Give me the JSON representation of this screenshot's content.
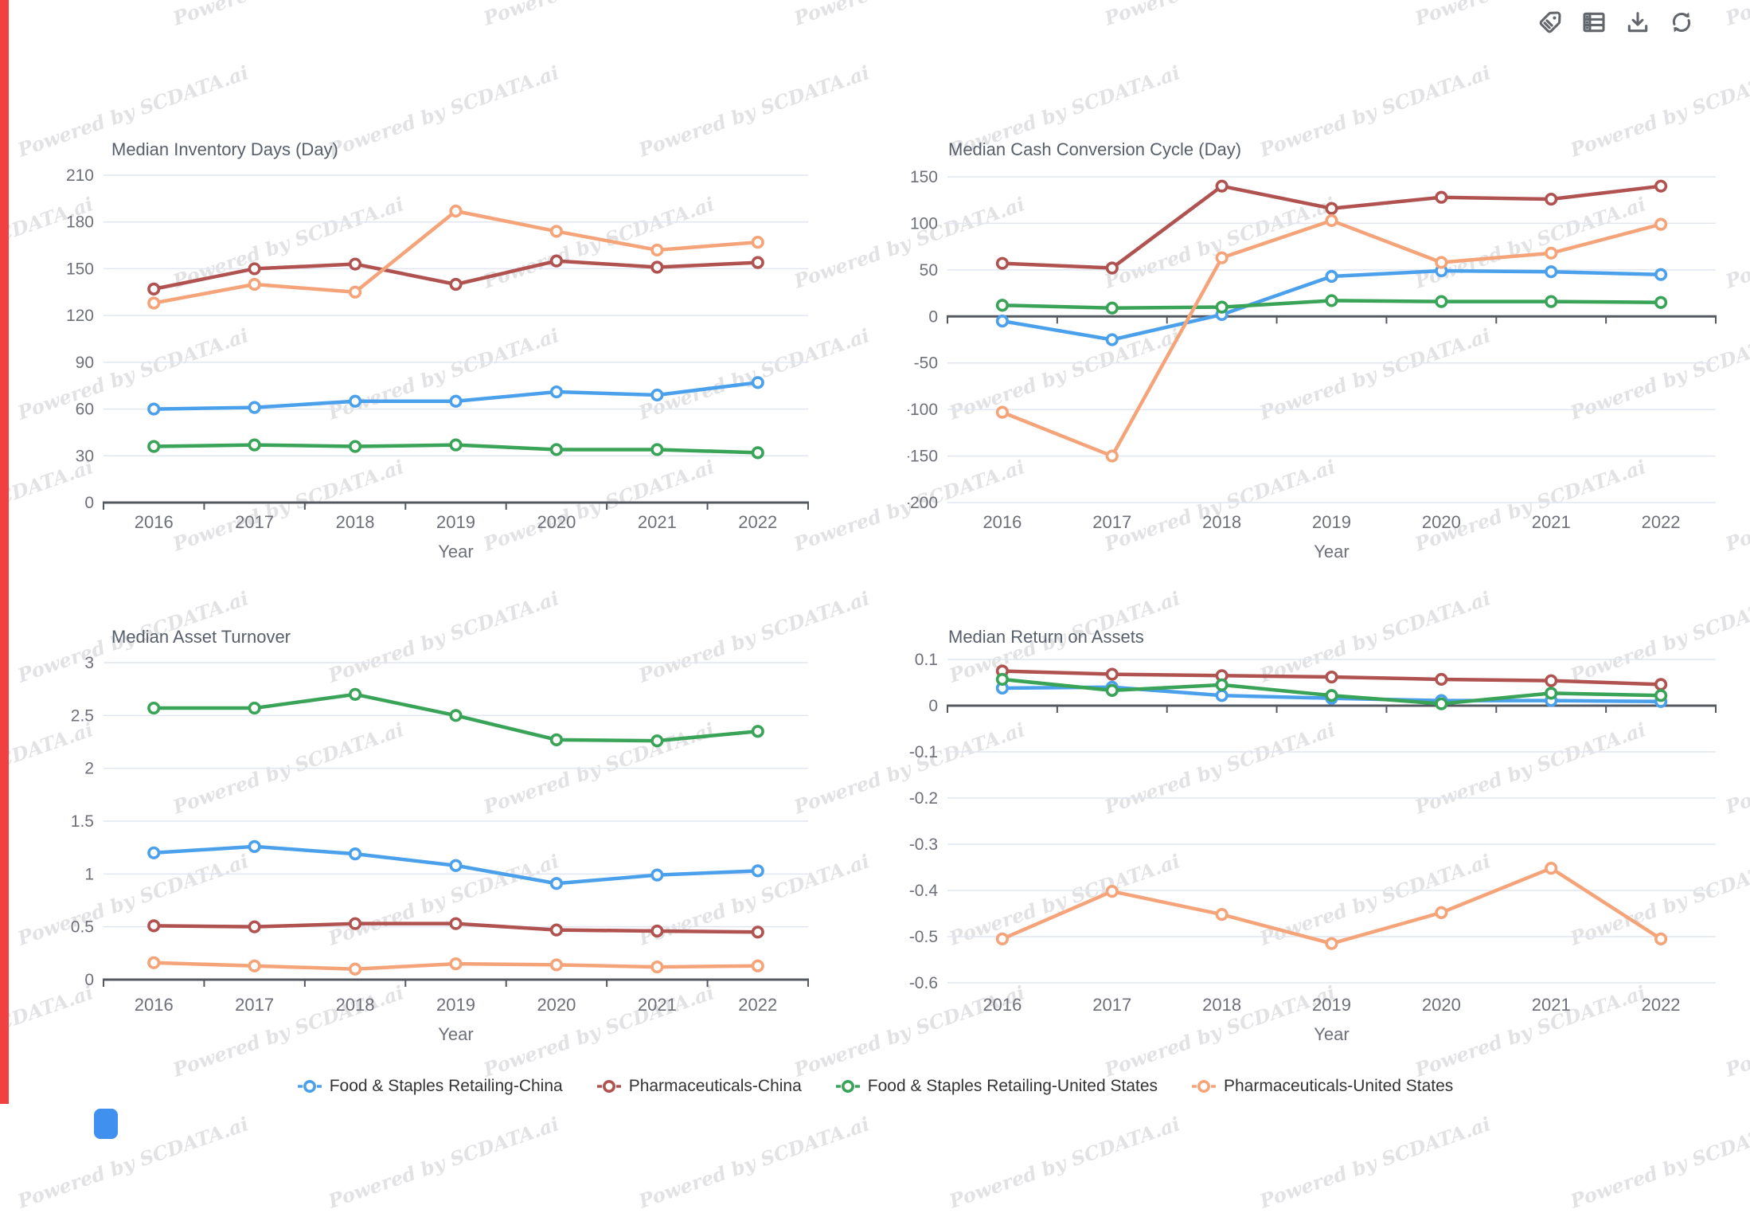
{
  "watermark": {
    "text": "Powered by SCDATA.ai"
  },
  "toolbar": {
    "icons": [
      "tag-icon",
      "table-icon",
      "download-icon",
      "refresh-icon"
    ]
  },
  "colors": {
    "series_blue": "#4ba0ec",
    "series_red": "#b0524f",
    "series_green": "#39a357",
    "series_orange": "#f5a479",
    "grid_line": "#e1e6f2",
    "axis_line": "#54595f",
    "tick_label": "#6E7079",
    "chart_title": "#575f6b",
    "legend_text": "#333333",
    "left_strip": "#f04040",
    "corner_box": "#4090f0"
  },
  "legend": {
    "items": [
      {
        "label": "Food & Staples Retailing-China",
        "color": "#4ba0ec"
      },
      {
        "label": "Pharmaceuticals-China",
        "color": "#b0524f"
      },
      {
        "label": "Food & Staples Retailing-United States",
        "color": "#39a357"
      },
      {
        "label": "Pharmaceuticals-United States",
        "color": "#f5a479"
      }
    ]
  },
  "chart_data": [
    {
      "type": "line",
      "title": "Median Inventory Days (Day)",
      "xlabel": "Year",
      "categories": [
        "2016",
        "2017",
        "2018",
        "2019",
        "2020",
        "2021",
        "2022"
      ],
      "ylim": [
        0,
        210
      ],
      "y_ticks": [
        210,
        180,
        150,
        120,
        90,
        60,
        30,
        0
      ],
      "grid": true,
      "legend_position": "bottom",
      "series": [
        {
          "name": "Food & Staples Retailing-China",
          "color": "#4ba0ec",
          "values": [
            60,
            61,
            65,
            65,
            71,
            69,
            77
          ]
        },
        {
          "name": "Pharmaceuticals-China",
          "color": "#b0524f",
          "values": [
            137,
            150,
            153,
            140,
            155,
            151,
            154
          ]
        },
        {
          "name": "Food & Staples Retailing-United States",
          "color": "#39a357",
          "values": [
            36,
            37,
            36,
            37,
            34,
            34,
            32
          ]
        },
        {
          "name": "Pharmaceuticals-United States",
          "color": "#f5a479",
          "values": [
            128,
            140,
            135,
            187,
            174,
            162,
            167
          ]
        }
      ]
    },
    {
      "type": "line",
      "title": "Median Cash Conversion Cycle (Day)",
      "xlabel": "Year",
      "categories": [
        "2016",
        "2017",
        "2018",
        "2019",
        "2020",
        "2021",
        "2022"
      ],
      "ylim": [
        -200,
        150
      ],
      "y_ticks": [
        150,
        100,
        50,
        0,
        -50,
        -100,
        -150,
        -200
      ],
      "grid": true,
      "legend_position": "bottom",
      "series": [
        {
          "name": "Food & Staples Retailing-China",
          "color": "#4ba0ec",
          "values": [
            -5,
            -25,
            2,
            43,
            49,
            48,
            45
          ]
        },
        {
          "name": "Pharmaceuticals-China",
          "color": "#b0524f",
          "values": [
            57,
            52,
            140,
            116,
            128,
            126,
            140
          ]
        },
        {
          "name": "Food & Staples Retailing-United States",
          "color": "#39a357",
          "values": [
            12,
            9,
            10,
            17,
            16,
            16,
            15
          ]
        },
        {
          "name": "Pharmaceuticals-United States",
          "color": "#f5a479",
          "values": [
            -103,
            -150,
            63,
            103,
            58,
            68,
            99
          ]
        }
      ]
    },
    {
      "type": "line",
      "title": "Median Asset Turnover",
      "xlabel": "Year",
      "categories": [
        "2016",
        "2017",
        "2018",
        "2019",
        "2020",
        "2021",
        "2022"
      ],
      "ylim": [
        0,
        3
      ],
      "y_ticks": [
        3,
        2.5,
        2,
        1.5,
        1,
        0.5,
        0
      ],
      "grid": true,
      "legend_position": "bottom",
      "series": [
        {
          "name": "Food & Staples Retailing-China",
          "color": "#4ba0ec",
          "values": [
            1.2,
            1.26,
            1.19,
            1.08,
            0.91,
            0.99,
            1.03
          ]
        },
        {
          "name": "Pharmaceuticals-China",
          "color": "#b0524f",
          "values": [
            0.51,
            0.5,
            0.53,
            0.53,
            0.47,
            0.46,
            0.45
          ]
        },
        {
          "name": "Food & Staples Retailing-United States",
          "color": "#39a357",
          "values": [
            2.57,
            2.57,
            2.7,
            2.5,
            2.27,
            2.26,
            2.35
          ]
        },
        {
          "name": "Pharmaceuticals-United States",
          "color": "#f5a479",
          "values": [
            0.16,
            0.13,
            0.1,
            0.15,
            0.14,
            0.12,
            0.13
          ]
        }
      ]
    },
    {
      "type": "line",
      "title": "Median Return on Assets",
      "xlabel": "Year",
      "categories": [
        "2016",
        "2017",
        "2018",
        "2019",
        "2020",
        "2021",
        "2022"
      ],
      "ylim": [
        -0.6,
        0.1
      ],
      "y_ticks": [
        0.1,
        0,
        -0.1,
        -0.2,
        -0.3,
        -0.4,
        -0.5,
        -0.6
      ],
      "grid": true,
      "legend_position": "bottom",
      "series": [
        {
          "name": "Food & Staples Retailing-China",
          "color": "#4ba0ec",
          "values": [
            0.038,
            0.04,
            0.022,
            0.016,
            0.011,
            0.011,
            0.009
          ]
        },
        {
          "name": "Pharmaceuticals-China",
          "color": "#b0524f",
          "values": [
            0.075,
            0.068,
            0.065,
            0.062,
            0.057,
            0.054,
            0.046
          ]
        },
        {
          "name": "Food & Staples Retailing-United States",
          "color": "#39a357",
          "values": [
            0.057,
            0.033,
            0.045,
            0.022,
            0.004,
            0.027,
            0.022
          ]
        },
        {
          "name": "Pharmaceuticals-United States",
          "color": "#f5a479",
          "values": [
            -0.505,
            -0.402,
            -0.452,
            -0.515,
            -0.448,
            -0.352,
            -0.505
          ]
        }
      ]
    }
  ]
}
